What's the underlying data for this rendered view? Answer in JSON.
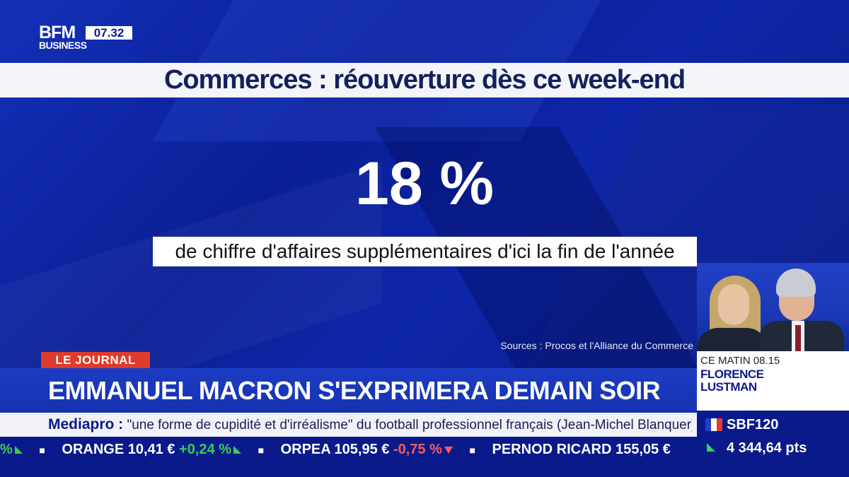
{
  "logo": {
    "brand": "BFM",
    "sub": "BUSINESS",
    "time": "07.32"
  },
  "headline": "Commerces : réouverture dès ce week-end",
  "stat": {
    "value": "18 %",
    "caption": "de chiffre d'affaires supplémentaires d'ici la fin de l'année",
    "sources": "Sources : Procos et l'Alliance du Commerce"
  },
  "show": {
    "time": "CE MATIN 08.15",
    "host_line1": "FLORENCE",
    "host_line2": "LUSTMAN"
  },
  "lower_third": {
    "tag": "LE JOURNAL",
    "title": "EMMANUEL MACRON S'EXPRIMERA DEMAIN SOIR"
  },
  "ticker": {
    "label": "Mediapro :",
    "text": " \"une forme de cupidité et d'irréalisme\" du football professionnel français (Jean-Michel Blanquer)"
  },
  "stocks": [
    {
      "name": "ORANGE",
      "price": "10,41 €",
      "change": "+0,24 %",
      "direction": "up"
    },
    {
      "name": "ORPEA",
      "price": "105,95 €",
      "change": "-0,75 %",
      "direction": "down"
    },
    {
      "name": "PERNOD RICARD",
      "price": "155,05 €",
      "change": "",
      "direction": "none"
    }
  ],
  "stocks_leading_change": "%",
  "index": {
    "name": "SBF120",
    "value": "4 344,64 pts",
    "direction": "up"
  },
  "colors": {
    "brand_blue": "#0b1a8a",
    "tag_red": "#e03a2b",
    "up_green": "#33d05a",
    "down_red": "#ff5a5a"
  }
}
